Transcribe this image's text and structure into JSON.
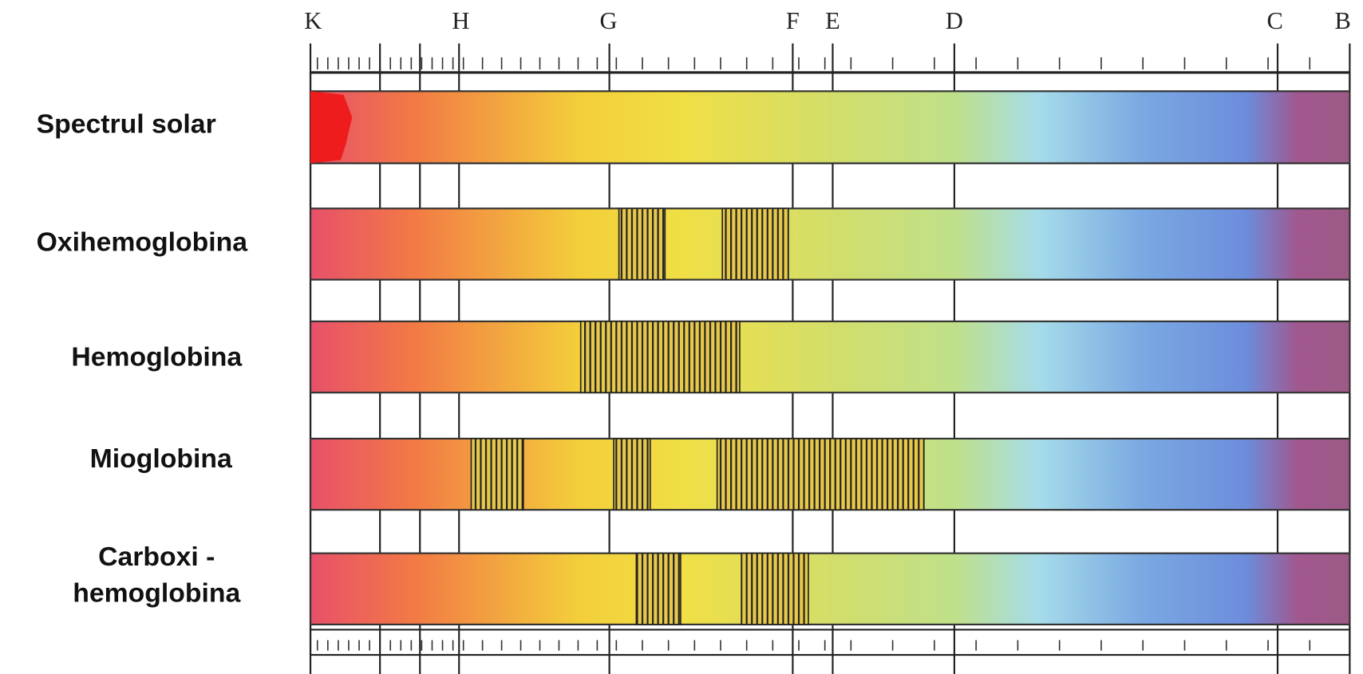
{
  "lines": [
    {
      "label": "K"
    },
    {
      "label": "H"
    },
    {
      "label": "G"
    },
    {
      "label": "F"
    },
    {
      "label": "E"
    },
    {
      "label": "D"
    },
    {
      "label": "C"
    },
    {
      "label": "B"
    }
  ],
  "rows": [
    {
      "label": [
        "Spectrul solar"
      ]
    },
    {
      "label": [
        "Oxihemoglobina"
      ]
    },
    {
      "label": [
        "Hemoglobina"
      ]
    },
    {
      "label": [
        "Mioglobina"
      ]
    },
    {
      "label": [
        "Carboxi -",
        "hemoglobina"
      ]
    }
  ]
}
